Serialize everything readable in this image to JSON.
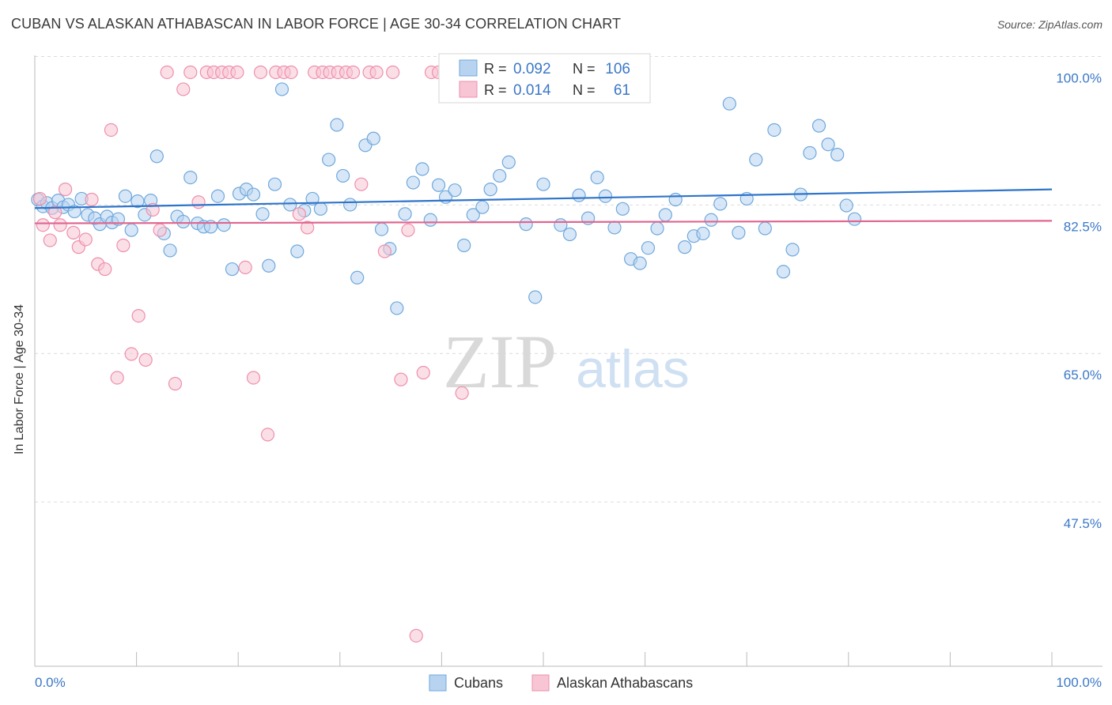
{
  "header": {
    "title": "CUBAN VS ALASKAN ATHABASCAN IN LABOR FORCE | AGE 30-34 CORRELATION CHART",
    "source": "Source: ZipAtlas.com"
  },
  "watermark": {
    "zip": "ZIP",
    "atlas": "atlas"
  },
  "colors": {
    "blue": "#6fa8dc",
    "blue_fill": "#b8d3f0",
    "blue_line": "#2f74c9",
    "pink": "#ee8fab",
    "pink_fill": "#f7c5d4",
    "pink_line": "#e06690",
    "tick_blue": "#3b78c8"
  },
  "chart_data": {
    "type": "scatter",
    "xlabel": "",
    "ylabel": "In Labor Force | Age 30-34",
    "xlim": [
      0,
      100
    ],
    "ylim": [
      30.0,
      102.0
    ],
    "x_tick_labels": [
      "0.0%",
      "100.0%"
    ],
    "y_ticks": [
      47.5,
      65.0,
      82.5,
      100.0
    ],
    "y_tick_labels": [
      "47.5%",
      "65.0%",
      "82.5%",
      "100.0%"
    ],
    "grid": "horizontal dashed",
    "legend_position": "top-center",
    "stats": [
      {
        "r_label": "R = ",
        "r": "0.092",
        "n_label": "N = ",
        "n": "106"
      },
      {
        "r_label": "R = ",
        "r": "0.014",
        "n_label": "N = ",
        "n": "61"
      }
    ],
    "series": [
      {
        "name": "Cubans",
        "trend": [
          [
            0,
            84.0
          ],
          [
            100,
            86.2
          ]
        ],
        "points": [
          [
            0.3,
            85.0
          ],
          [
            0.8,
            84.2
          ],
          [
            1.2,
            84.6
          ],
          [
            1.7,
            84.0
          ],
          [
            2.3,
            84.9
          ],
          [
            2.8,
            84.1
          ],
          [
            3.3,
            84.4
          ],
          [
            3.9,
            83.6
          ],
          [
            4.6,
            85.1
          ],
          [
            5.2,
            83.2
          ],
          [
            5.9,
            82.8
          ],
          [
            6.4,
            82.1
          ],
          [
            7.1,
            83.0
          ],
          [
            7.6,
            82.3
          ],
          [
            8.2,
            82.7
          ],
          [
            8.9,
            85.4
          ],
          [
            9.5,
            81.4
          ],
          [
            10.1,
            84.8
          ],
          [
            10.8,
            83.2
          ],
          [
            11.4,
            84.9
          ],
          [
            12.0,
            90.1
          ],
          [
            12.7,
            81.0
          ],
          [
            13.3,
            79.0
          ],
          [
            14.0,
            83.0
          ],
          [
            14.6,
            82.4
          ],
          [
            15.3,
            87.6
          ],
          [
            16.0,
            82.2
          ],
          [
            16.6,
            81.8
          ],
          [
            17.3,
            81.8
          ],
          [
            18.0,
            85.4
          ],
          [
            18.6,
            82.0
          ],
          [
            19.4,
            76.8
          ],
          [
            20.1,
            85.7
          ],
          [
            20.8,
            86.2
          ],
          [
            21.5,
            85.6
          ],
          [
            22.4,
            83.3
          ],
          [
            23.0,
            77.2
          ],
          [
            23.6,
            86.8
          ],
          [
            24.3,
            98.0
          ],
          [
            25.1,
            84.4
          ],
          [
            25.8,
            78.9
          ],
          [
            26.5,
            83.7
          ],
          [
            27.3,
            85.1
          ],
          [
            28.1,
            83.9
          ],
          [
            28.9,
            89.7
          ],
          [
            29.7,
            93.8
          ],
          [
            30.3,
            87.8
          ],
          [
            31.0,
            84.4
          ],
          [
            31.7,
            75.8
          ],
          [
            32.5,
            91.4
          ],
          [
            33.3,
            92.2
          ],
          [
            34.1,
            81.5
          ],
          [
            34.9,
            79.2
          ],
          [
            35.6,
            72.2
          ],
          [
            36.4,
            83.3
          ],
          [
            37.2,
            87.0
          ],
          [
            38.1,
            88.6
          ],
          [
            38.9,
            82.6
          ],
          [
            39.7,
            86.7
          ],
          [
            40.4,
            85.3
          ],
          [
            41.3,
            86.1
          ],
          [
            42.2,
            79.6
          ],
          [
            43.1,
            83.2
          ],
          [
            44.0,
            84.1
          ],
          [
            44.8,
            86.2
          ],
          [
            45.7,
            87.8
          ],
          [
            46.6,
            89.4
          ],
          [
            47.4,
            98.3
          ],
          [
            48.3,
            82.1
          ],
          [
            49.2,
            73.5
          ],
          [
            50.0,
            86.8
          ],
          [
            50.8,
            100.0
          ],
          [
            51.7,
            82.0
          ],
          [
            52.6,
            80.9
          ],
          [
            53.5,
            85.5
          ],
          [
            54.4,
            82.8
          ],
          [
            55.3,
            87.6
          ],
          [
            56.1,
            85.4
          ],
          [
            57.0,
            81.7
          ],
          [
            57.8,
            83.9
          ],
          [
            58.6,
            78.0
          ],
          [
            59.5,
            77.5
          ],
          [
            60.3,
            79.3
          ],
          [
            61.2,
            81.6
          ],
          [
            62.0,
            83.2
          ],
          [
            63.0,
            85.0
          ],
          [
            63.9,
            79.4
          ],
          [
            64.8,
            80.7
          ],
          [
            65.7,
            81.0
          ],
          [
            66.5,
            82.6
          ],
          [
            67.4,
            84.5
          ],
          [
            68.3,
            96.3
          ],
          [
            69.2,
            81.1
          ],
          [
            70.0,
            85.1
          ],
          [
            70.9,
            89.7
          ],
          [
            71.8,
            81.6
          ],
          [
            72.7,
            93.2
          ],
          [
            73.6,
            76.5
          ],
          [
            74.5,
            79.1
          ],
          [
            75.3,
            85.6
          ],
          [
            76.2,
            90.5
          ],
          [
            77.1,
            93.7
          ],
          [
            78.0,
            91.5
          ],
          [
            78.9,
            90.3
          ],
          [
            79.8,
            84.3
          ],
          [
            80.6,
            82.7
          ]
        ]
      },
      {
        "name": "Alaskan Athabascans",
        "trend": [
          [
            0,
            82.2
          ],
          [
            100,
            82.5
          ]
        ],
        "points": [
          [
            0.5,
            85.1
          ],
          [
            0.8,
            82.0
          ],
          [
            1.5,
            80.2
          ],
          [
            2.0,
            83.5
          ],
          [
            2.5,
            82.0
          ],
          [
            3.0,
            86.2
          ],
          [
            3.8,
            81.1
          ],
          [
            4.3,
            79.4
          ],
          [
            5.0,
            80.3
          ],
          [
            5.6,
            85.0
          ],
          [
            6.2,
            77.4
          ],
          [
            6.9,
            76.8
          ],
          [
            7.5,
            93.2
          ],
          [
            8.1,
            64.0
          ],
          [
            8.7,
            79.6
          ],
          [
            9.5,
            66.8
          ],
          [
            10.2,
            71.3
          ],
          [
            10.9,
            66.1
          ],
          [
            11.6,
            83.8
          ],
          [
            12.3,
            81.4
          ],
          [
            13.0,
            100.0
          ],
          [
            13.8,
            63.3
          ],
          [
            14.6,
            98.0
          ],
          [
            15.3,
            100.0
          ],
          [
            16.1,
            84.7
          ],
          [
            16.9,
            100.0
          ],
          [
            17.6,
            100.0
          ],
          [
            18.4,
            100.0
          ],
          [
            19.1,
            100.0
          ],
          [
            19.9,
            100.0
          ],
          [
            20.7,
            77.0
          ],
          [
            21.5,
            64.0
          ],
          [
            22.2,
            100.0
          ],
          [
            22.9,
            57.3
          ],
          [
            23.7,
            100.0
          ],
          [
            24.5,
            100.0
          ],
          [
            25.2,
            100.0
          ],
          [
            26.0,
            83.3
          ],
          [
            26.8,
            81.7
          ],
          [
            27.5,
            100.0
          ],
          [
            28.3,
            100.0
          ],
          [
            29.0,
            100.0
          ],
          [
            29.8,
            100.0
          ],
          [
            30.6,
            100.0
          ],
          [
            31.3,
            100.0
          ],
          [
            32.1,
            86.8
          ],
          [
            32.9,
            100.0
          ],
          [
            33.6,
            100.0
          ],
          [
            34.4,
            78.9
          ],
          [
            35.2,
            100.0
          ],
          [
            36.0,
            63.8
          ],
          [
            36.7,
            81.4
          ],
          [
            37.5,
            33.6
          ],
          [
            38.2,
            64.6
          ],
          [
            39.0,
            100.0
          ],
          [
            39.7,
            100.0
          ],
          [
            40.5,
            100.0
          ],
          [
            41.2,
            100.0
          ],
          [
            42.0,
            62.2
          ],
          [
            42.7,
            100.0
          ],
          [
            43.5,
            100.0
          ]
        ]
      }
    ]
  }
}
